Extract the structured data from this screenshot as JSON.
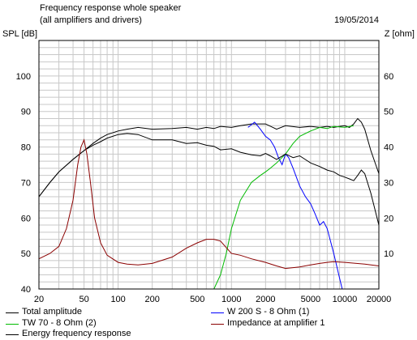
{
  "chart_data": {
    "type": "line",
    "title": "Frequency response whole speaker",
    "subtitle": "(all amplifiers and drivers)",
    "date": "19/05/2014",
    "ylabel": "SPL [dB]",
    "y2label": "Z [ohm]",
    "x_scale": "log",
    "xlim": [
      20,
      20000
    ],
    "ylim": [
      40,
      110
    ],
    "y2lim": [
      0,
      70
    ],
    "grid": true,
    "x_ticks": [
      "20",
      "50",
      "100",
      "200",
      "500",
      "1000",
      "2000",
      "5000",
      "10000",
      "20000"
    ],
    "x_tick_values": [
      20,
      50,
      100,
      200,
      500,
      1000,
      2000,
      5000,
      10000,
      20000
    ],
    "y_ticks": [
      "40",
      "50",
      "60",
      "70",
      "80",
      "90",
      "100"
    ],
    "y_tick_values": [
      40,
      50,
      60,
      70,
      80,
      90,
      100
    ],
    "y2_ticks": [
      "10",
      "20",
      "30",
      "40",
      "50",
      "60"
    ],
    "y2_tick_values": [
      10,
      20,
      30,
      40,
      50,
      60
    ],
    "series": [
      {
        "name": "Total amplitude",
        "color": "#000000",
        "x": [
          20,
          25,
          30,
          40,
          50,
          60,
          70,
          80,
          100,
          120,
          150,
          200,
          300,
          400,
          500,
          600,
          700,
          800,
          1000,
          1200,
          1500,
          2000,
          2500,
          3000,
          4000,
          5000,
          6000,
          7000,
          8000,
          9000,
          10000,
          11000,
          12000,
          13000,
          14000,
          15000,
          17000,
          20000
        ],
        "y": [
          66,
          70,
          73,
          76.5,
          79,
          81,
          82.5,
          83.5,
          84.5,
          85,
          85.5,
          85,
          85.2,
          85.5,
          85,
          85.5,
          85.2,
          85.8,
          85.5,
          86,
          86.5,
          86.5,
          85,
          86,
          85.5,
          85.8,
          85.5,
          85.8,
          85.5,
          85.8,
          86,
          85.5,
          86.5,
          88,
          87,
          85,
          79,
          72.5
        ]
      },
      {
        "name": "W 200 S - 8 Ohm (1)",
        "color": "#0000ff",
        "x": [
          1400,
          1600,
          1800,
          2000,
          2200,
          2400,
          2600,
          2800,
          3000,
          3200,
          3500,
          4000,
          4500,
          5000,
          5500,
          6000,
          6500,
          7000,
          8000,
          9000,
          9500
        ],
        "y": [
          85.5,
          87,
          85,
          83,
          82,
          80,
          77,
          75,
          78,
          77,
          74,
          69,
          66,
          64,
          61,
          58,
          59,
          57,
          50,
          43,
          40
        ]
      },
      {
        "name": "TW 70 - 8 Ohm (2)",
        "color": "#00bb00",
        "x": [
          20,
          700,
          800,
          900,
          1000,
          1200,
          1500,
          1800,
          2000,
          2200,
          2500,
          3000,
          3500,
          4000,
          5000,
          6000,
          7000,
          8000,
          10000,
          12000
        ],
        "y": [
          40,
          40,
          44,
          50,
          57,
          65,
          70,
          72,
          73,
          74,
          75.5,
          78,
          81,
          83,
          84.5,
          85.5,
          85.2,
          85.8,
          85.5,
          86
        ]
      },
      {
        "name": "Energy frequency response",
        "color": "#000000",
        "x": [
          20,
          25,
          30,
          40,
          50,
          60,
          70,
          80,
          100,
          120,
          150,
          200,
          300,
          400,
          500,
          600,
          700,
          800,
          1000,
          1200,
          1500,
          1800,
          2000,
          2200,
          2500,
          3000,
          3500,
          4000,
          5000,
          6000,
          7000,
          8000,
          9000,
          10000,
          11000,
          12000,
          13000,
          14000,
          15000,
          17000,
          20000
        ],
        "y": [
          66,
          70,
          73,
          76.5,
          79,
          80.5,
          81.5,
          82.5,
          83.5,
          83.8,
          83.5,
          82,
          82,
          81,
          81.2,
          80.5,
          80.2,
          79.2,
          79.5,
          78.5,
          77.8,
          77.5,
          78.2,
          77.5,
          76.5,
          78,
          77,
          77.5,
          75.5,
          74.5,
          73.5,
          73,
          72,
          71.5,
          71,
          70.5,
          72,
          73.5,
          72.5,
          67,
          58
        ]
      },
      {
        "name": "Impedance at amplifier 1",
        "color": "#8b0000",
        "axis": "right",
        "x": [
          20,
          25,
          30,
          35,
          40,
          44,
          47,
          50,
          53,
          57,
          62,
          70,
          80,
          100,
          120,
          150,
          200,
          300,
          400,
          500,
          600,
          700,
          800,
          1000,
          1200,
          1500,
          2000,
          2500,
          3000,
          4000,
          5000,
          6000,
          7000,
          8000,
          10000,
          15000,
          20000
        ],
        "y": [
          8.5,
          10,
          12,
          17,
          25,
          35,
          40,
          42,
          38,
          30,
          20,
          13,
          9.5,
          7.5,
          7,
          6.8,
          7.2,
          9,
          11.5,
          13,
          14,
          14,
          13.5,
          10,
          9.5,
          8.5,
          7.5,
          6.5,
          5.8,
          6.2,
          6.8,
          7.2,
          7.5,
          7.7,
          7.5,
          7,
          6.5
        ]
      }
    ]
  }
}
